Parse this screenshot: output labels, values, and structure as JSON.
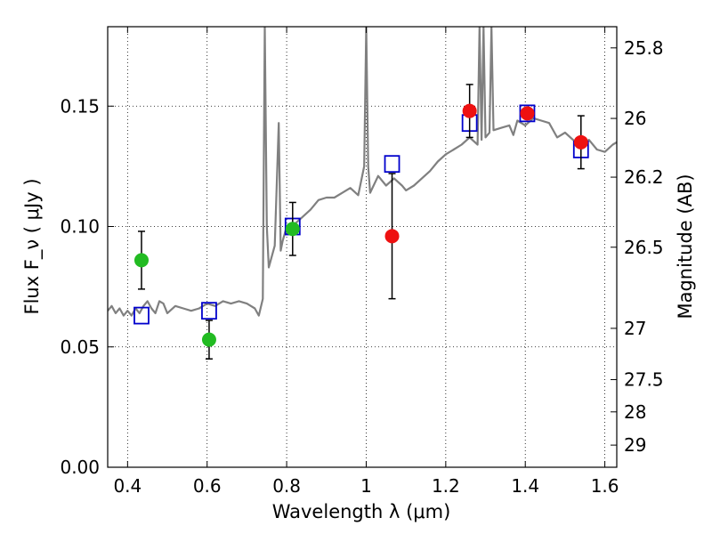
{
  "chart_data": {
    "type": "scatter",
    "title": "",
    "xlabel": "Wavelength  λ (μm)",
    "ylabel": "Flux  F_ν  ( μJy )",
    "ylabel_right": "Magnitude (AB)",
    "xlim": [
      0.35,
      1.63
    ],
    "ylim": [
      0,
      0.183
    ],
    "grid": true,
    "x_ticks": [
      0.4,
      0.6,
      0.8,
      1.0,
      1.2,
      1.4,
      1.6
    ],
    "x_tick_labels": [
      "0.4",
      "0.6",
      "0.8",
      "1",
      "1.2",
      "1.4",
      "1.6"
    ],
    "y_ticks": [
      0.0,
      0.05,
      0.1,
      0.15
    ],
    "y_tick_labels": [
      "0.00",
      "0.05",
      "0.10",
      "0.15"
    ],
    "right_ticks": [
      {
        "label": "25.8",
        "flux": 0.1742
      },
      {
        "label": "26",
        "flux": 0.1449
      },
      {
        "label": "26.2",
        "flux": 0.1205
      },
      {
        "label": "26.5",
        "flux": 0.0914
      },
      {
        "label": "27",
        "flux": 0.0577
      },
      {
        "label": "27.5",
        "flux": 0.0364
      },
      {
        "label": "28",
        "flux": 0.023
      },
      {
        "label": "29",
        "flux": 0.0092
      }
    ],
    "series": [
      {
        "type": "line",
        "color": "#808080",
        "x": [
          0.35,
          0.36,
          0.37,
          0.38,
          0.39,
          0.4,
          0.41,
          0.42,
          0.43,
          0.44,
          0.45,
          0.46,
          0.47,
          0.48,
          0.49,
          0.5,
          0.52,
          0.54,
          0.56,
          0.58,
          0.6,
          0.62,
          0.64,
          0.66,
          0.68,
          0.7,
          0.72,
          0.73,
          0.74,
          0.745,
          0.75,
          0.755,
          0.76,
          0.77,
          0.78,
          0.785,
          0.79,
          0.795,
          0.8,
          0.82,
          0.84,
          0.86,
          0.88,
          0.9,
          0.92,
          0.94,
          0.96,
          0.98,
          0.995,
          1.0,
          1.005,
          1.01,
          1.03,
          1.05,
          1.07,
          1.09,
          1.1,
          1.12,
          1.14,
          1.16,
          1.18,
          1.2,
          1.22,
          1.24,
          1.26,
          1.28,
          1.285,
          1.29,
          1.295,
          1.3,
          1.31,
          1.315,
          1.32,
          1.34,
          1.36,
          1.37,
          1.38,
          1.4,
          1.42,
          1.44,
          1.46,
          1.48,
          1.5,
          1.52,
          1.54,
          1.56,
          1.58,
          1.6,
          1.62,
          1.63
        ],
        "y": [
          0.065,
          0.067,
          0.064,
          0.066,
          0.063,
          0.065,
          0.063,
          0.066,
          0.064,
          0.067,
          0.069,
          0.066,
          0.064,
          0.069,
          0.068,
          0.064,
          0.067,
          0.066,
          0.065,
          0.066,
          0.068,
          0.067,
          0.069,
          0.068,
          0.069,
          0.068,
          0.066,
          0.063,
          0.07,
          0.183,
          0.1,
          0.083,
          0.086,
          0.092,
          0.143,
          0.09,
          0.094,
          0.097,
          0.1,
          0.101,
          0.104,
          0.107,
          0.111,
          0.112,
          0.112,
          0.114,
          0.116,
          0.113,
          0.125,
          0.183,
          0.125,
          0.114,
          0.121,
          0.117,
          0.12,
          0.117,
          0.115,
          0.117,
          0.12,
          0.123,
          0.127,
          0.13,
          0.132,
          0.134,
          0.137,
          0.134,
          0.183,
          0.136,
          0.183,
          0.137,
          0.139,
          0.183,
          0.14,
          0.141,
          0.142,
          0.138,
          0.144,
          0.142,
          0.145,
          0.144,
          0.143,
          0.137,
          0.139,
          0.136,
          0.134,
          0.136,
          0.132,
          0.131,
          0.134,
          0.135
        ]
      },
      {
        "name": "",
        "marker": "square-open",
        "color": "#0000cc",
        "points": [
          {
            "x": 0.435,
            "y": 0.063
          },
          {
            "x": 0.605,
            "y": 0.065
          },
          {
            "x": 0.815,
            "y": 0.1
          },
          {
            "x": 1.065,
            "y": 0.126
          },
          {
            "x": 1.26,
            "y": 0.143
          },
          {
            "x": 1.405,
            "y": 0.147
          },
          {
            "x": 1.54,
            "y": 0.132
          }
        ]
      },
      {
        "name": "",
        "marker": "circle-filled",
        "color": "#22bb22",
        "points": [
          {
            "x": 0.435,
            "y": 0.086,
            "err": 0.012
          },
          {
            "x": 0.605,
            "y": 0.053,
            "err": 0.008
          },
          {
            "x": 0.815,
            "y": 0.099,
            "err": 0.011
          }
        ]
      },
      {
        "name": "",
        "marker": "circle-filled",
        "color": "#ee1111",
        "points": [
          {
            "x": 1.065,
            "y": 0.096,
            "err": 0.026
          },
          {
            "x": 1.26,
            "y": 0.148,
            "err": 0.011
          },
          {
            "x": 1.405,
            "y": 0.147,
            "err": 0.0
          },
          {
            "x": 1.54,
            "y": 0.135,
            "err": 0.011
          }
        ]
      }
    ]
  }
}
